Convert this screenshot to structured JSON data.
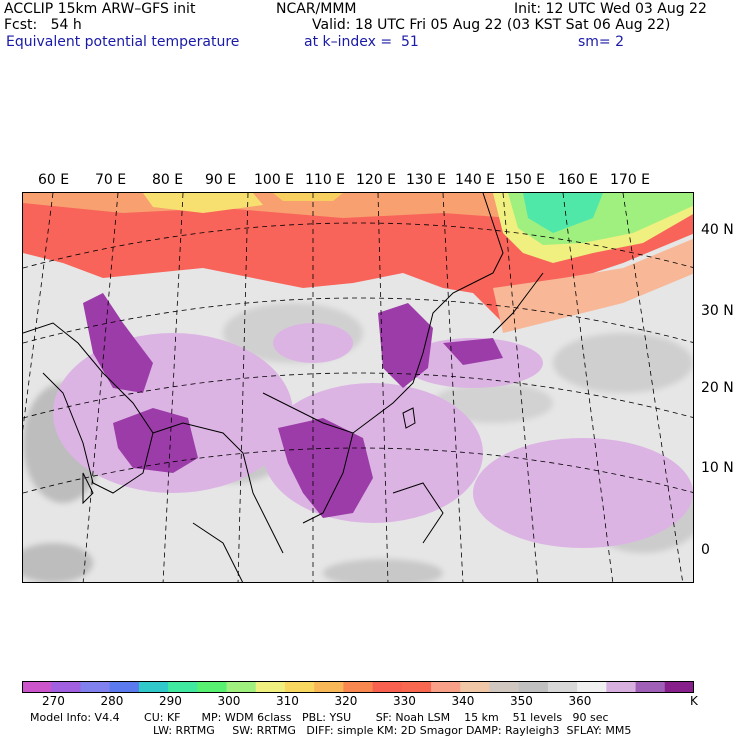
{
  "header": {
    "model": "ACCLIP 15km ARW–GFS init",
    "center": "NCAR/MMM",
    "init": "Init: 12 UTC Wed 03 Aug 22",
    "fcst": "Fcst:   54 h",
    "valid": "Valid: 18 UTC Fri 05 Aug 22 (03 KST Sat 06 Aug 22)",
    "field": "Equivalent potential temperature",
    "level": "at k–index =  51",
    "smooth": "sm= 2"
  },
  "map": {
    "lon_labels": [
      "60 E",
      "70 E",
      "80 E",
      "90 E",
      "100 E",
      "110 E",
      "120 E",
      "130 E",
      "140 E",
      "150 E",
      "160 E",
      "170 E"
    ],
    "lat_labels": [
      "40 N",
      "30 N",
      "20 N",
      "10 N",
      "0"
    ]
  },
  "colorbar": {
    "colors": [
      "#cc55cc",
      "#a060e0",
      "#8080ee",
      "#5a7aee",
      "#30c8c8",
      "#40e8a0",
      "#58f070",
      "#a0f080",
      "#f0f080",
      "#f8d860",
      "#f8b858",
      "#f88850",
      "#f86050",
      "#f86850",
      "#f8a088",
      "#f0c8a8",
      "#d0c8c0",
      "#c0c0c0",
      "#d8d8d8",
      "#f0f0f0",
      "#d8b0e0",
      "#a060b8",
      "#88208c"
    ],
    "ticks": [
      "270",
      "280",
      "290",
      "300",
      "310",
      "320",
      "330",
      "340",
      "350",
      "360"
    ],
    "unit": "K"
  },
  "footer": {
    "line1": "Model Info: V4.4       CU: KF      MP: WDM 6class   PBL: YSU       SF: Noah LSM    15 km    51 levels   90 sec",
    "line2": "LW: RRTMG     SW: RRTMG   DIFF: simple KM: 2D Smagor DAMP: Rayleigh3  SFLAY: MM5"
  }
}
